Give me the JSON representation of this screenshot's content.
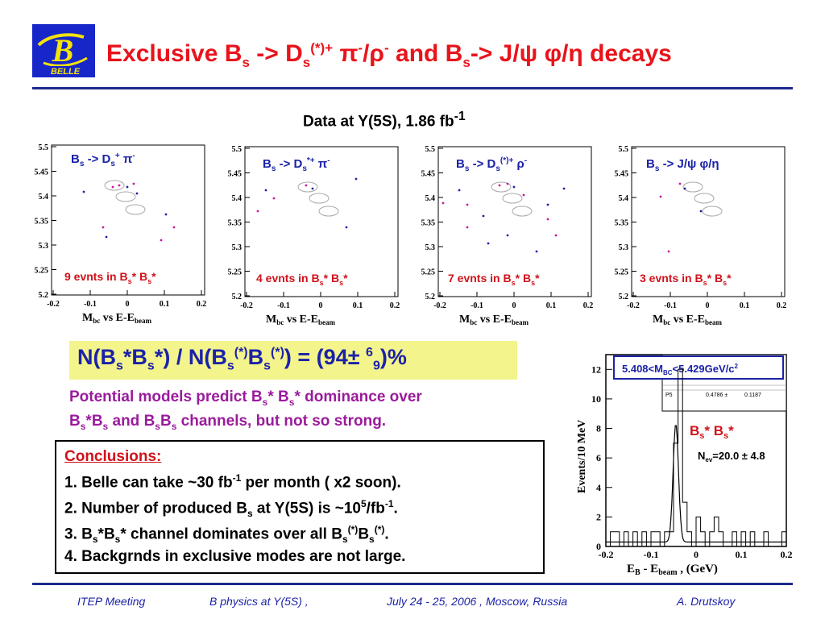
{
  "logo": {
    "letter": "B",
    "word": "BELLE"
  },
  "title": {
    "p1": "Exclusive B",
    "p1s": "s",
    "p2": " -> D",
    "p2s": "s",
    "p2p": "(*)+",
    "p3": " π",
    "p3p": "-",
    "p4": "/ρ",
    "p4p": "-",
    "p5": "  and B",
    "p5s": "s",
    "p6": "-> J/ψ φ/η decays"
  },
  "subtitle": {
    "main": "Data at Y(5S), 1.86 fb",
    "sup": "-1"
  },
  "scatter_axes": {
    "y_ticks": [
      "5.5",
      "5.45",
      "5.4",
      "5.35",
      "5.3",
      "5.25",
      "5.2"
    ],
    "x_ticks": [
      "-0.2",
      "-0.1",
      "0",
      "0.1",
      "0.2"
    ],
    "xlabel_m": "M",
    "xlabel_m_sub": "bc",
    "xlabel_vs": " vs  E-E",
    "xlabel_sub": "beam"
  },
  "panels": [
    {
      "lab1": "B",
      "lab1s": "s",
      "lab2": " -> D",
      "lab2s": "s",
      "lab2p": "+",
      "lab3": " π",
      "lab3p": "-",
      "ev1": "9 evnts in B",
      "ev1s": "s",
      "ev2": "* B",
      "ev2s": "s",
      "ev3": "*"
    },
    {
      "lab1": "B",
      "lab1s": "s",
      "lab2": " -> D",
      "lab2s": "s",
      "lab2p": "*+",
      "lab3": " π",
      "lab3p": "-",
      "ev1": "4 evnts in B",
      "ev1s": "s",
      "ev2": "* B",
      "ev2s": "s",
      "ev3": "*"
    },
    {
      "lab1": "B",
      "lab1s": "s",
      "lab2": " -> D",
      "lab2s": "s",
      "lab2p": "(*)+",
      "lab3": " ρ",
      "lab3p": "-",
      "ev1": "7 evnts in B",
      "ev1s": "s",
      "ev2": "* B",
      "ev2s": "s",
      "ev3": "*"
    },
    {
      "lab1": "B",
      "lab1s": "s",
      "lab2": " -> J/ψ φ/η",
      "lab2s": "",
      "lab2p": "",
      "lab3": "",
      "lab3p": "",
      "ev1": "3 evnts in B",
      "ev1s": "s",
      "ev2": "* B",
      "ev2s": "s",
      "ev3": "*"
    }
  ],
  "ratio": {
    "a": "N(B",
    "as": "s",
    "b": "*B",
    "bs": "s",
    "c": "*) / N(B",
    "cs": "s",
    "cp": "(*)",
    "d": "B",
    "ds": "s",
    "dp": "(*)",
    "e": ") = (94± ",
    "ep": "6",
    "es": "9",
    "f": ")%"
  },
  "potential": {
    "l1a": "Potential models predict B",
    "l1s": "s",
    "l1b": "* B",
    "l1s2": "s",
    "l1c": "* dominance over",
    "l2a": "B",
    "l2s": "s",
    "l2b": "*B",
    "l2s2": "s",
    "l2c": " and B",
    "l2s3": "s",
    "l2d": "B",
    "l2s4": "s",
    "l2e": " channels, but not so strong."
  },
  "conclusions": {
    "heading": "Conclusions:",
    "i1a": "1. Belle can take ~30 fb",
    "i1p": "-1",
    "i1b": " per month ( x2 soon).",
    "i2a": "2. Number of produced B",
    "i2s": "s",
    "i2b": " at Y(5S)  is ~10",
    "i2p": "5",
    "i2c": "/fb",
    "i2p2": "-1",
    "i2d": ".",
    "i3a": "3. B",
    "i3s": "s",
    "i3b": "*B",
    "i3s2": "s",
    "i3c": "* channel dominates over all B",
    "i3s3": "s",
    "i3p": "(*)",
    "i3d": "B",
    "i3s4": "s",
    "i3p2": "(*)",
    "i3e": ".",
    "i4": "4. Backgrnds in exclusive modes are not large."
  },
  "histogram": {
    "cut_a": "5.408<M",
    "cut_sub": "BC",
    "cut_b": "<5.429GeV/c",
    "cut_sup": "2",
    "stats_label": "P5",
    "stats_v1": "0.4786 ±",
    "stats_v2": "0.1187",
    "label_a": "B",
    "label_as": "s",
    "label_b": "* B",
    "label_bs": "s",
    "label_c": "*",
    "nev_a": "N",
    "nev_s": "ev",
    "nev_b": "=20.0 ± 4.8",
    "ylabel": "Events/10 MeV",
    "xlabel_a": "E",
    "xlabel_as": "B",
    "xlabel_b": " - E",
    "xlabel_bs": "beam",
    "xlabel_c": " ,   (GeV)",
    "y_ticks": [
      "0",
      "2",
      "4",
      "6",
      "8",
      "10",
      "12"
    ],
    "x_ticks": [
      "-0.2",
      "-0.1",
      "0",
      "0.1",
      "0.2"
    ]
  },
  "chart_data": {
    "type": "bar",
    "x": [
      -0.2,
      -0.19,
      -0.18,
      -0.17,
      -0.16,
      -0.15,
      -0.14,
      -0.13,
      -0.12,
      -0.11,
      -0.1,
      -0.09,
      -0.08,
      -0.07,
      -0.06,
      -0.05,
      -0.04,
      -0.03,
      -0.02,
      -0.01,
      0.0,
      0.01,
      0.02,
      0.03,
      0.04,
      0.05,
      0.06,
      0.07,
      0.08,
      0.09,
      0.1,
      0.11,
      0.12,
      0.13,
      0.14,
      0.15,
      0.16,
      0.17,
      0.18,
      0.19
    ],
    "values": [
      0,
      1,
      1,
      0,
      1,
      0,
      1,
      0,
      1,
      0,
      1,
      1,
      0,
      1,
      1,
      7,
      12,
      3,
      1,
      0,
      2,
      1,
      0,
      1,
      2,
      1,
      0,
      0,
      1,
      0,
      1,
      0,
      1,
      0,
      0,
      1,
      0,
      0,
      0,
      1
    ],
    "xlim": [
      -0.2,
      0.2
    ],
    "ylim": [
      0,
      13
    ],
    "fit": {
      "mean": -0.045,
      "sigma": 0.006,
      "peak": 8
    },
    "xlabel": "E_B - E_beam , (GeV)",
    "ylabel": "Events/10 MeV"
  },
  "footer": {
    "meeting": "ITEP Meeting",
    "topic": "B physics at Y(5S)  ,",
    "date": "July 24 - 25, 2006 , Moscow, Russia",
    "author": "A. Drutskoy"
  }
}
